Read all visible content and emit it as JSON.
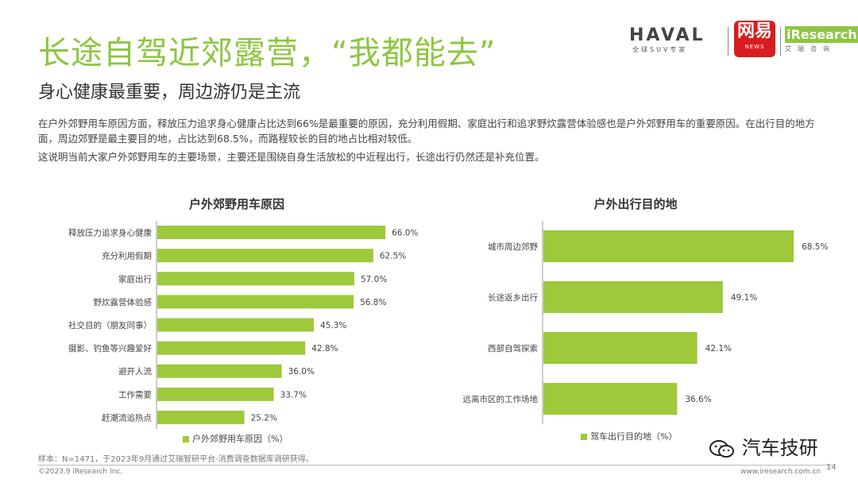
{
  "header": {
    "title": "长途自驾近郊露营，“我都能去”",
    "subtitle": "身心健康最重要，周边游仍是主流"
  },
  "body": {
    "paragraph1": "在户外郊野用车原因方面，释放压力追求身心健康占比达到66%是最重要的原因，充分利用假期、家庭出行和追求野炊露营体验感也是户外郊野用车的重要原因。在出行目的地方面，周边郊野是最主要目的地，占比达到68.5%，而路程较长的目的地占比相对较低。",
    "paragraph2": "这说明当前大家户外郊野用车的主要场景，主要还是围绕自身生活放松的中近程出行，长途出行仍然还是补充位置。"
  },
  "logos": {
    "haval": "HAVAL",
    "haval_tag": "全球SUV专家",
    "netease": "网易",
    "netease_sub": "NEWS",
    "iresearch": "iResearch",
    "iresearch_tag": "艾瑞咨询"
  },
  "footer": {
    "source": "样本：N=1471，于2023年9月通过艾瑞智研平台-消费调查数据库调研获得。",
    "copyright": "©2023.9 iResearch Inc.",
    "website": "www.iresearch.com.cn",
    "page": "14",
    "watermark": "汽车技研"
  },
  "colors": {
    "bar": "#9dc93a",
    "accent": "#8cc63f"
  },
  "chart_data": [
    {
      "type": "bar",
      "orientation": "horizontal",
      "title": "户外郊野用车原因",
      "categories": [
        "释放压力追求身心健康",
        "充分利用假期",
        "家庭出行",
        "野炊露营体验感",
        "社交目的（朋友同事）",
        "摄影、钓鱼等兴趣爱好",
        "避开人流",
        "工作需要",
        "赶潮流追热点"
      ],
      "series": [
        {
          "name": "户外郊野用车原因（%）",
          "values": [
            66.0,
            62.5,
            57.0,
            56.8,
            45.3,
            42.8,
            36.0,
            33.7,
            25.2
          ]
        }
      ],
      "value_labels": [
        "66.0%",
        "62.5%",
        "57.0%",
        "56.8%",
        "45.3%",
        "42.8%",
        "36.0%",
        "33.7%",
        "25.2%"
      ],
      "legend": "bottom"
    },
    {
      "type": "bar",
      "orientation": "horizontal",
      "title": "户外出行目的地",
      "categories": [
        "城市周边郊野",
        "长途返乡出行",
        "西部自驾探索",
        "远离市区的工作场地"
      ],
      "series": [
        {
          "name": "驾车出行目的地（%）",
          "values": [
            68.5,
            49.1,
            42.1,
            36.6
          ]
        }
      ],
      "value_labels": [
        "68.5%",
        "49.1%",
        "42.1%",
        "36.6%"
      ],
      "legend": "bottom"
    }
  ]
}
